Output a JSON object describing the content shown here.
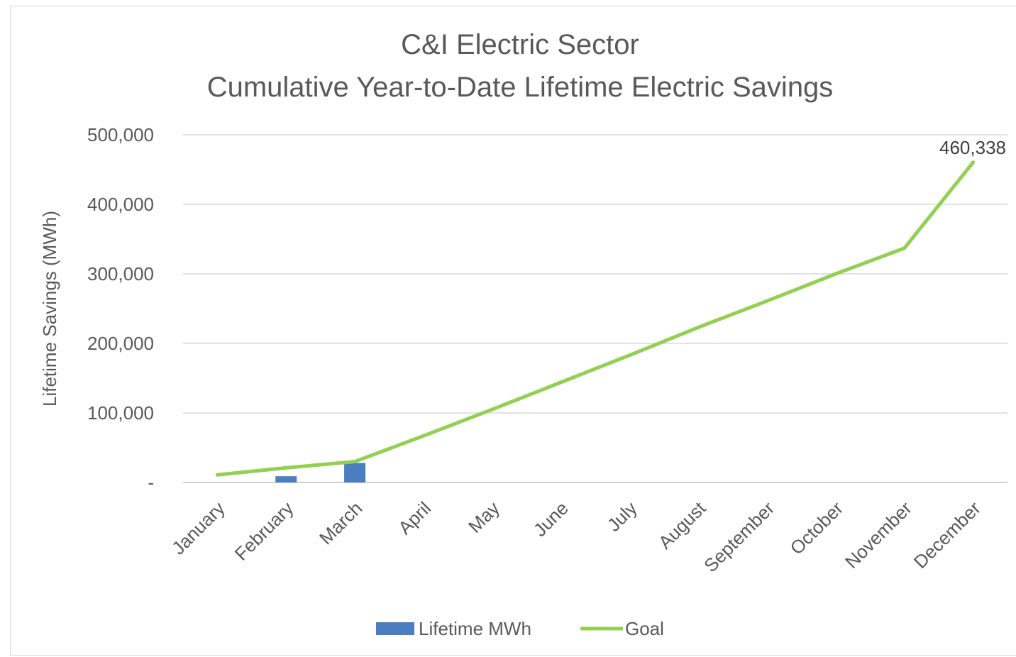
{
  "chart_data": {
    "type": "bar",
    "title": [
      "C&I Electric Sector",
      "Cumulative Year-to-Date Lifetime Electric Savings"
    ],
    "ylabel": "Lifetime Savings (MWh)",
    "xlabel": "",
    "ylim": [
      0,
      500000
    ],
    "y_ticks": [
      0,
      100000,
      200000,
      300000,
      400000,
      500000
    ],
    "y_tick_labels": [
      "-",
      "100,000",
      "200,000",
      "300,000",
      "400,000",
      "500,000"
    ],
    "grid": true,
    "legend_position": "bottom",
    "categories": [
      "January",
      "February",
      "March",
      "April",
      "May",
      "June",
      "July",
      "August",
      "September",
      "October",
      "November",
      "December"
    ],
    "series": [
      {
        "name": "Lifetime MWh",
        "type": "bar",
        "color": "#4a7ebf",
        "values": [
          0,
          9000,
          28000,
          null,
          null,
          null,
          null,
          null,
          null,
          null,
          null,
          null
        ]
      },
      {
        "name": "Goal",
        "type": "line",
        "color": "#92d050",
        "values": [
          11000,
          21000,
          30000,
          67000,
          105000,
          144000,
          183000,
          223000,
          261000,
          300000,
          337000,
          460338
        ]
      }
    ],
    "annotations": [
      {
        "series": "Goal",
        "category": "December",
        "text": "460,338"
      }
    ]
  }
}
